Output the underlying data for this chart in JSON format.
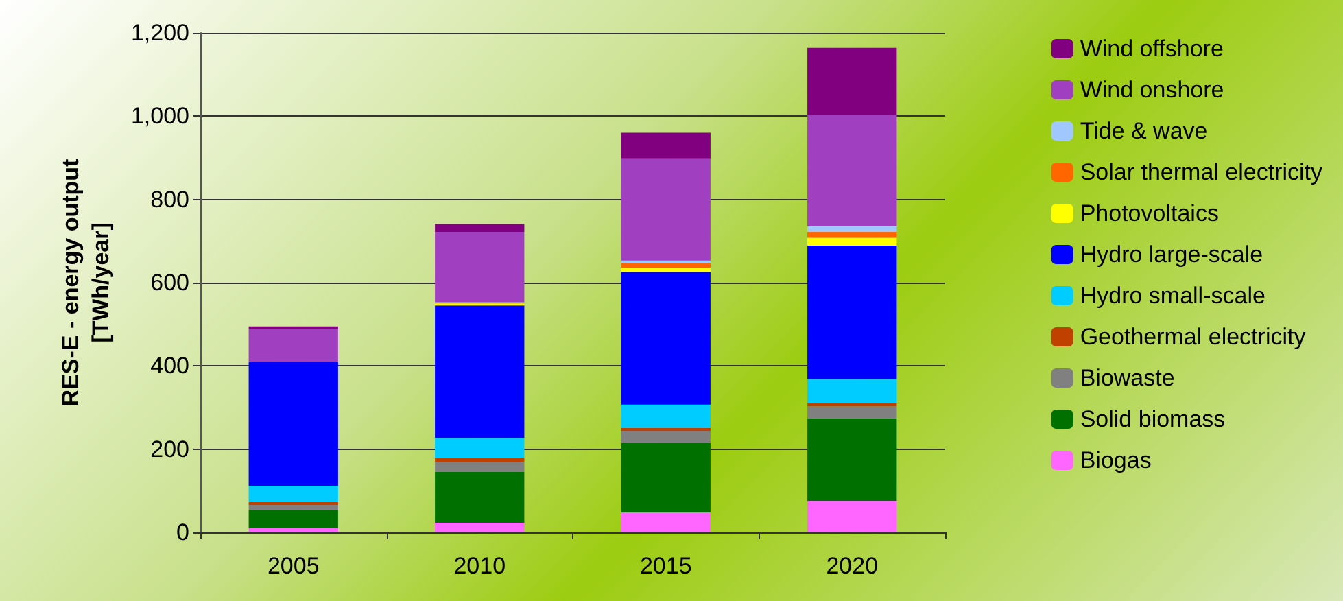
{
  "chart_data": {
    "type": "bar",
    "stacked": true,
    "ylabel": "RES-E - energy output\n[TWh/year]",
    "categories": [
      "2005",
      "2010",
      "2015",
      "2020"
    ],
    "series": [
      {
        "name": "Biogas",
        "color": "#ff66ff",
        "values": [
          10,
          23,
          48,
          76
        ]
      },
      {
        "name": "Solid biomass",
        "color": "#007000",
        "values": [
          43,
          122,
          167,
          198
        ]
      },
      {
        "name": "Biowaste",
        "color": "#808080",
        "values": [
          13,
          24,
          29,
          29
        ]
      },
      {
        "name": "Geothermal electricity",
        "color": "#c04000",
        "values": [
          7,
          9,
          7,
          7
        ]
      },
      {
        "name": "Hydro small-scale",
        "color": "#00ccff",
        "values": [
          39,
          49,
          56,
          59
        ]
      },
      {
        "name": "Hydro large-scale",
        "color": "#0000ff",
        "values": [
          297,
          318,
          319,
          320
        ]
      },
      {
        "name": "Photovoltaics",
        "color": "#ffff00",
        "values": [
          1,
          5,
          10,
          19
        ]
      },
      {
        "name": "Solar thermal electricity",
        "color": "#ff6600",
        "values": [
          0,
          2,
          10,
          14
        ]
      },
      {
        "name": "Tide & wave",
        "color": "#a0c8ff",
        "values": [
          0,
          1,
          7,
          13
        ]
      },
      {
        "name": "Wind onshore",
        "color": "#a040c0",
        "values": [
          79,
          169,
          244,
          267
        ]
      },
      {
        "name": "Wind offshore",
        "color": "#800080",
        "values": [
          6,
          19,
          63,
          162
        ]
      }
    ],
    "ylim": [
      0,
      1200
    ],
    "yticks": [
      0,
      200,
      400,
      600,
      800,
      {
        "value": 1000,
        "label": "1,000"
      },
      {
        "value": 1200,
        "label": "1,200"
      }
    ],
    "grid": "y",
    "legend": "right"
  }
}
